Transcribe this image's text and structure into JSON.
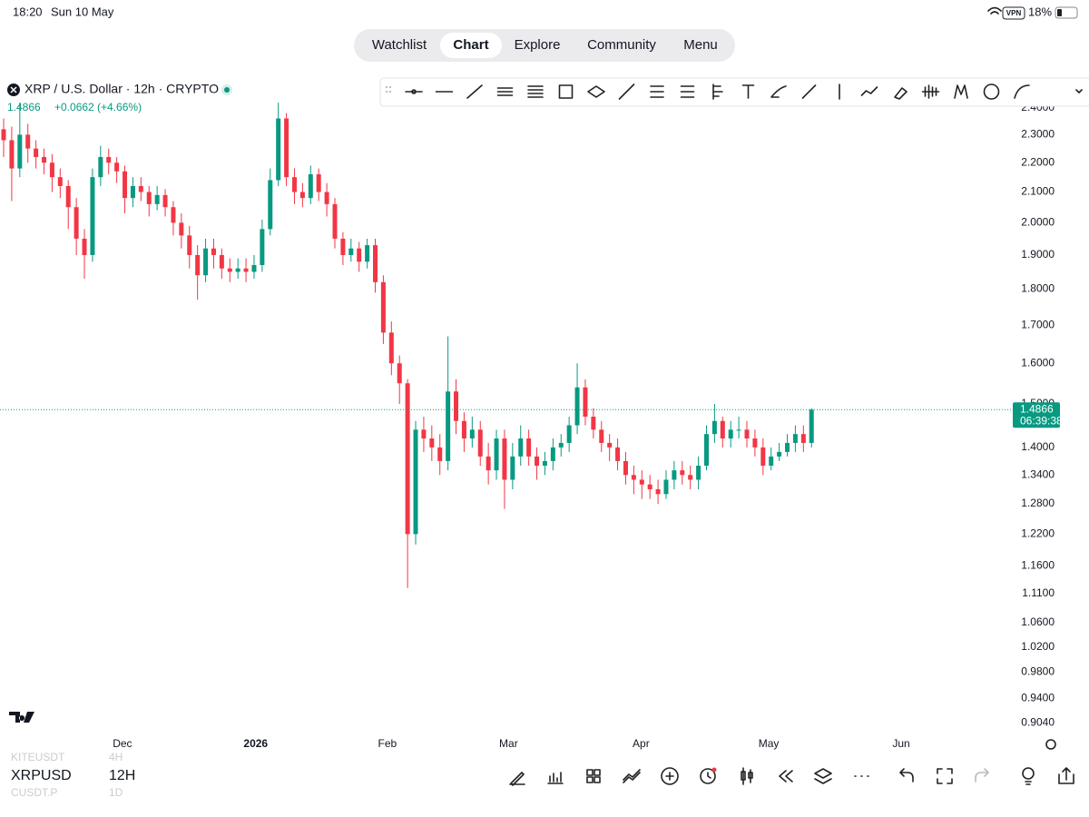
{
  "status_bar": {
    "time": "18:20",
    "date": "Sun 10 May",
    "vpn": "VPN",
    "battery": "18%"
  },
  "nav": {
    "tabs": [
      "Watchlist",
      "Chart",
      "Explore",
      "Community",
      "Menu"
    ],
    "active_index": 1
  },
  "chart_data": {
    "type": "candlestick",
    "title": "XRP / U.S. Dollar · 12h · CRYPTO",
    "last_text": "1.4866",
    "change_text": "+0.0662 (+4.66%)",
    "last_price": 1.4866,
    "countdown": "06:39:38",
    "log_scale": true,
    "up_color": "#089981",
    "down_color": "#f23645",
    "open": [
      2.32,
      2.28,
      2.18,
      2.3,
      2.25,
      2.22,
      2.2,
      2.15,
      2.12,
      2.05,
      1.95,
      1.9,
      2.15,
      2.22,
      2.2,
      2.17,
      2.08,
      2.12,
      2.1,
      2.06,
      2.09,
      2.05,
      2.0,
      1.96,
      1.9,
      1.84,
      1.92,
      1.9,
      1.86,
      1.85,
      1.86,
      1.85,
      1.87,
      1.98,
      2.14,
      2.36,
      2.15,
      2.1,
      2.08,
      2.16,
      2.1,
      2.06,
      1.95,
      1.9,
      1.92,
      1.88,
      1.93,
      1.82,
      1.68,
      1.6,
      1.55,
      1.22,
      1.44,
      1.42,
      1.4,
      1.37,
      1.53,
      1.46,
      1.42,
      1.44,
      1.38,
      1.35,
      1.42,
      1.33,
      1.38,
      1.42,
      1.38,
      1.36,
      1.37,
      1.4,
      1.41,
      1.45,
      1.54,
      1.47,
      1.44,
      1.41,
      1.4,
      1.37,
      1.34,
      1.33,
      1.32,
      1.31,
      1.3,
      1.33,
      1.35,
      1.34,
      1.33,
      1.36,
      1.43,
      1.46,
      1.42,
      1.44,
      1.44,
      1.42,
      1.4,
      1.36,
      1.38,
      1.39,
      1.41,
      1.43,
      1.41
    ],
    "high": [
      2.36,
      2.33,
      2.42,
      2.34,
      2.28,
      2.25,
      2.23,
      2.18,
      2.14,
      2.08,
      1.98,
      2.18,
      2.26,
      2.25,
      2.22,
      2.19,
      2.15,
      2.15,
      2.12,
      2.12,
      2.11,
      2.07,
      2.03,
      1.99,
      1.93,
      1.95,
      1.95,
      1.92,
      1.89,
      1.89,
      1.89,
      1.9,
      2.01,
      2.18,
      2.42,
      2.38,
      2.18,
      2.13,
      2.19,
      2.18,
      2.13,
      2.08,
      1.97,
      1.95,
      1.94,
      1.95,
      1.95,
      1.84,
      1.71,
      1.62,
      1.56,
      1.46,
      1.47,
      1.45,
      1.43,
      1.67,
      1.56,
      1.48,
      1.47,
      1.46,
      1.41,
      1.44,
      1.44,
      1.41,
      1.45,
      1.44,
      1.4,
      1.39,
      1.42,
      1.43,
      1.47,
      1.6,
      1.56,
      1.49,
      1.46,
      1.43,
      1.42,
      1.39,
      1.36,
      1.35,
      1.34,
      1.33,
      1.35,
      1.37,
      1.37,
      1.36,
      1.38,
      1.45,
      1.5,
      1.47,
      1.46,
      1.47,
      1.46,
      1.44,
      1.42,
      1.4,
      1.41,
      1.43,
      1.45,
      1.45,
      1.49
    ],
    "low": [
      2.22,
      2.07,
      2.15,
      2.2,
      2.18,
      2.16,
      2.1,
      2.08,
      1.98,
      1.9,
      1.83,
      1.88,
      2.12,
      2.16,
      2.13,
      2.03,
      2.05,
      2.07,
      2.02,
      2.04,
      2.02,
      1.96,
      1.92,
      1.86,
      1.77,
      1.82,
      1.86,
      1.83,
      1.82,
      1.83,
      1.82,
      1.83,
      1.85,
      1.96,
      2.12,
      2.12,
      2.06,
      2.05,
      2.06,
      2.07,
      2.02,
      1.92,
      1.87,
      1.88,
      1.85,
      1.86,
      1.79,
      1.65,
      1.57,
      1.5,
      1.12,
      1.2,
      1.39,
      1.37,
      1.34,
      1.35,
      1.43,
      1.39,
      1.4,
      1.36,
      1.32,
      1.33,
      1.27,
      1.31,
      1.36,
      1.36,
      1.33,
      1.34,
      1.35,
      1.38,
      1.39,
      1.43,
      1.45,
      1.42,
      1.39,
      1.37,
      1.35,
      1.32,
      1.3,
      1.29,
      1.29,
      1.28,
      1.29,
      1.31,
      1.32,
      1.31,
      1.31,
      1.35,
      1.41,
      1.4,
      1.4,
      1.42,
      1.4,
      1.38,
      1.34,
      1.35,
      1.37,
      1.38,
      1.39,
      1.39,
      1.4
    ],
    "close": [
      2.28,
      2.18,
      2.3,
      2.25,
      2.22,
      2.2,
      2.15,
      2.12,
      2.05,
      1.95,
      1.9,
      2.15,
      2.22,
      2.2,
      2.17,
      2.08,
      2.12,
      2.1,
      2.06,
      2.09,
      2.05,
      2.0,
      1.96,
      1.9,
      1.84,
      1.92,
      1.9,
      1.86,
      1.85,
      1.86,
      1.85,
      1.87,
      1.98,
      2.14,
      2.36,
      2.15,
      2.1,
      2.08,
      2.16,
      2.1,
      2.06,
      1.95,
      1.9,
      1.92,
      1.88,
      1.93,
      1.82,
      1.68,
      1.6,
      1.55,
      1.22,
      1.44,
      1.42,
      1.4,
      1.37,
      1.53,
      1.46,
      1.42,
      1.44,
      1.38,
      1.35,
      1.42,
      1.33,
      1.38,
      1.42,
      1.38,
      1.36,
      1.37,
      1.4,
      1.41,
      1.45,
      1.54,
      1.47,
      1.44,
      1.41,
      1.4,
      1.37,
      1.34,
      1.33,
      1.32,
      1.31,
      1.3,
      1.33,
      1.35,
      1.34,
      1.33,
      1.36,
      1.43,
      1.46,
      1.42,
      1.44,
      1.44,
      1.42,
      1.4,
      1.36,
      1.38,
      1.39,
      1.41,
      1.43,
      1.41,
      1.4866
    ],
    "ylim": [
      0.889,
      2.52
    ],
    "yticks": [
      {
        "value": 2.4,
        "label": "2.4000"
      },
      {
        "value": 2.3,
        "label": "2.3000"
      },
      {
        "value": 2.2,
        "label": "2.2000"
      },
      {
        "value": 2.1,
        "label": "2.1000"
      },
      {
        "value": 2.0,
        "label": "2.0000"
      },
      {
        "value": 1.9,
        "label": "1.9000"
      },
      {
        "value": 1.8,
        "label": "1.8000"
      },
      {
        "value": 1.7,
        "label": "1.7000"
      },
      {
        "value": 1.6,
        "label": "1.6000"
      },
      {
        "value": 1.5,
        "label": "1.5000"
      },
      {
        "value": 1.4,
        "label": "1.4000"
      },
      {
        "value": 1.34,
        "label": "1.3400"
      },
      {
        "value": 1.28,
        "label": "1.2800"
      },
      {
        "value": 1.22,
        "label": "1.2200"
      },
      {
        "value": 1.16,
        "label": "1.1600"
      },
      {
        "value": 1.11,
        "label": "1.1100"
      },
      {
        "value": 1.06,
        "label": "1.0600"
      },
      {
        "value": 1.02,
        "label": "1.0200"
      },
      {
        "value": 0.98,
        "label": "0.9800"
      },
      {
        "value": 0.94,
        "label": "0.9400"
      },
      {
        "value": 0.904,
        "label": "0.9040"
      }
    ],
    "xlim": [
      -0.45,
      124.8
    ],
    "xticks": [
      {
        "value": 14.7,
        "label": "Dec"
      },
      {
        "value": 31.2,
        "label": "2026"
      },
      {
        "value": 47.5,
        "label": "Feb"
      },
      {
        "value": 62.5,
        "label": "Mar"
      },
      {
        "value": 78.9,
        "label": "Apr"
      },
      {
        "value": 94.7,
        "label": "May"
      },
      {
        "value": 111.1,
        "label": "Jun"
      }
    ]
  },
  "watchlist": [
    {
      "symbol": "KITEUSDT",
      "interval": "4H"
    },
    {
      "symbol": "XRPUSD",
      "interval": "12H"
    },
    {
      "symbol": "CUSDT.P",
      "interval": "1D"
    }
  ]
}
